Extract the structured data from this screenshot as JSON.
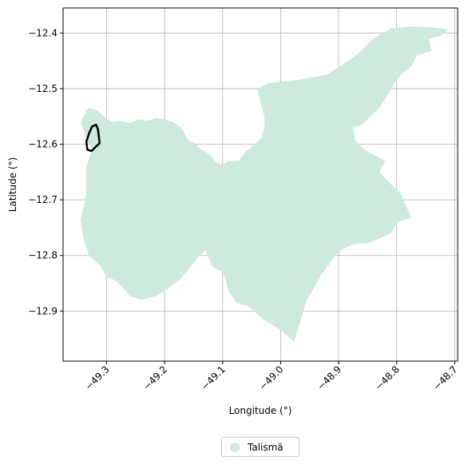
{
  "chart_data": {
    "type": "map",
    "xlabel": "Longitude (°)",
    "ylabel": "Latitude (°)",
    "xlim": [
      -49.375,
      -48.695
    ],
    "ylim": [
      -12.99,
      -12.355
    ],
    "xticks": [
      -49.3,
      -49.2,
      -49.1,
      -49.0,
      -48.9,
      -48.8,
      -48.7
    ],
    "xtick_labels": [
      "−49.3",
      "−49.2",
      "−49.1",
      "−49.0",
      "−48.9",
      "−48.8",
      "−48.7"
    ],
    "yticks": [
      -12.4,
      -12.5,
      -12.6,
      -12.7,
      -12.8,
      -12.9
    ],
    "ytick_labels": [
      "−12.4",
      "−12.5",
      "−12.6",
      "−12.7",
      "−12.8",
      "−12.9"
    ],
    "grid": true,
    "legend_position": "bottom-center",
    "legend": [
      {
        "label": "Talismã",
        "color": "#cdeadc"
      }
    ],
    "region_color": "#cdeadc",
    "outline_color": "#000000",
    "region_polygon": [
      [
        -49.33,
        -12.535
      ],
      [
        -49.315,
        -12.54
      ],
      [
        -49.302,
        -12.552
      ],
      [
        -49.29,
        -12.56
      ],
      [
        -49.275,
        -12.558
      ],
      [
        -49.26,
        -12.562
      ],
      [
        -49.245,
        -12.555
      ],
      [
        -49.23,
        -12.558
      ],
      [
        -49.215,
        -12.553
      ],
      [
        -49.2,
        -12.555
      ],
      [
        -49.185,
        -12.56
      ],
      [
        -49.17,
        -12.572
      ],
      [
        -49.16,
        -12.592
      ],
      [
        -49.148,
        -12.598
      ],
      [
        -49.14,
        -12.607
      ],
      [
        -49.12,
        -12.62
      ],
      [
        -49.112,
        -12.632
      ],
      [
        -49.1,
        -12.638
      ],
      [
        -49.09,
        -12.63
      ],
      [
        -49.073,
        -12.63
      ],
      [
        -49.06,
        -12.613
      ],
      [
        -49.045,
        -12.6
      ],
      [
        -49.033,
        -12.588
      ],
      [
        -49.028,
        -12.57
      ],
      [
        -49.028,
        -12.55
      ],
      [
        -49.035,
        -12.525
      ],
      [
        -49.04,
        -12.5
      ],
      [
        -49.02,
        -12.49
      ],
      [
        -48.975,
        -12.485
      ],
      [
        -48.92,
        -12.475
      ],
      [
        -48.87,
        -12.44
      ],
      [
        -48.84,
        -12.41
      ],
      [
        -48.81,
        -12.392
      ],
      [
        -48.775,
        -12.388
      ],
      [
        -48.745,
        -12.389
      ],
      [
        -48.71,
        -12.393
      ],
      [
        -48.725,
        -12.405
      ],
      [
        -48.745,
        -12.41
      ],
      [
        -48.74,
        -12.432
      ],
      [
        -48.765,
        -12.44
      ],
      [
        -48.775,
        -12.46
      ],
      [
        -48.8,
        -12.482
      ],
      [
        -48.815,
        -12.51
      ],
      [
        -48.83,
        -12.535
      ],
      [
        -48.86,
        -12.565
      ],
      [
        -48.875,
        -12.57
      ],
      [
        -48.872,
        -12.592
      ],
      [
        -48.855,
        -12.61
      ],
      [
        -48.82,
        -12.63
      ],
      [
        -48.83,
        -12.65
      ],
      [
        -48.81,
        -12.672
      ],
      [
        -48.795,
        -12.686
      ],
      [
        -48.785,
        -12.708
      ],
      [
        -48.775,
        -12.732
      ],
      [
        -48.8,
        -12.74
      ],
      [
        -48.81,
        -12.76
      ],
      [
        -48.83,
        -12.77
      ],
      [
        -48.85,
        -12.778
      ],
      [
        -48.875,
        -12.78
      ],
      [
        -48.9,
        -12.792
      ],
      [
        -48.93,
        -12.835
      ],
      [
        -48.955,
        -12.88
      ],
      [
        -48.977,
        -12.955
      ],
      [
        -48.998,
        -12.935
      ],
      [
        -49.03,
        -12.915
      ],
      [
        -49.055,
        -12.892
      ],
      [
        -49.075,
        -12.885
      ],
      [
        -49.09,
        -12.865
      ],
      [
        -49.095,
        -12.842
      ],
      [
        -49.1,
        -12.83
      ],
      [
        -49.118,
        -12.82
      ],
      [
        -49.13,
        -12.79
      ],
      [
        -49.14,
        -12.8
      ],
      [
        -49.155,
        -12.82
      ],
      [
        -49.175,
        -12.845
      ],
      [
        -49.195,
        -12.86
      ],
      [
        -49.215,
        -12.873
      ],
      [
        -49.24,
        -12.88
      ],
      [
        -49.26,
        -12.873
      ],
      [
        -49.27,
        -12.86
      ],
      [
        -49.285,
        -12.845
      ],
      [
        -49.3,
        -12.838
      ],
      [
        -49.31,
        -12.82
      ],
      [
        -49.33,
        -12.8
      ],
      [
        -49.34,
        -12.77
      ],
      [
        -49.345,
        -12.735
      ],
      [
        -49.34,
        -12.715
      ],
      [
        -49.335,
        -12.69
      ],
      [
        -49.335,
        -12.64
      ],
      [
        -49.325,
        -12.61
      ],
      [
        -49.335,
        -12.59
      ],
      [
        -49.345,
        -12.56
      ],
      [
        -49.335,
        -12.54
      ]
    ],
    "outline_polygon": [
      [
        -49.325,
        -12.568
      ],
      [
        -49.318,
        -12.565
      ],
      [
        -49.315,
        -12.573
      ],
      [
        -49.312,
        -12.598
      ],
      [
        -49.326,
        -12.612
      ],
      [
        -49.333,
        -12.61
      ],
      [
        -49.335,
        -12.595
      ],
      [
        -49.33,
        -12.58
      ]
    ]
  }
}
